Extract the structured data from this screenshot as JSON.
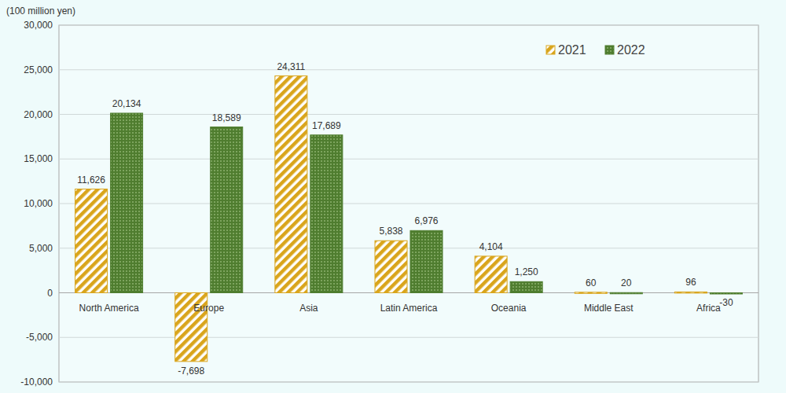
{
  "chart_data": {
    "type": "bar",
    "y_label": "(100 million yen)",
    "categories": [
      "North America",
      "Europe",
      "Asia",
      "Latin America",
      "Oceania",
      "Middle East",
      "Africa"
    ],
    "series": [
      {
        "name": "2021",
        "color": "#d9a51c",
        "values": [
          11626,
          -7698,
          24311,
          5838,
          4104,
          60,
          96
        ],
        "value_labels": [
          "11,626",
          "-7,698",
          "24,311",
          "5,838",
          "4,104",
          "60",
          "96"
        ]
      },
      {
        "name": "2022",
        "color": "#4f7d2f",
        "values": [
          20134,
          18589,
          17689,
          6976,
          1250,
          20,
          -30
        ],
        "value_labels": [
          "20,134",
          "18,589",
          "17,689",
          "6,976",
          "1,250",
          "20",
          "-30"
        ]
      }
    ],
    "ylim": [
      -10000,
      30000
    ],
    "yticks": [
      {
        "value": -10000,
        "label": "-10,000"
      },
      {
        "value": -5000,
        "label": "-5,000"
      },
      0,
      {
        "value": 5000,
        "label": "5,000"
      },
      {
        "value": 10000,
        "label": "10,000"
      },
      {
        "value": 15000,
        "label": "15,000"
      },
      {
        "value": 20000,
        "label": "20,000"
      },
      {
        "value": 25000,
        "label": "25,000"
      },
      {
        "value": 30000,
        "label": "30,000"
      }
    ],
    "grid": true,
    "legend": "upper right",
    "data_labels": true
  }
}
